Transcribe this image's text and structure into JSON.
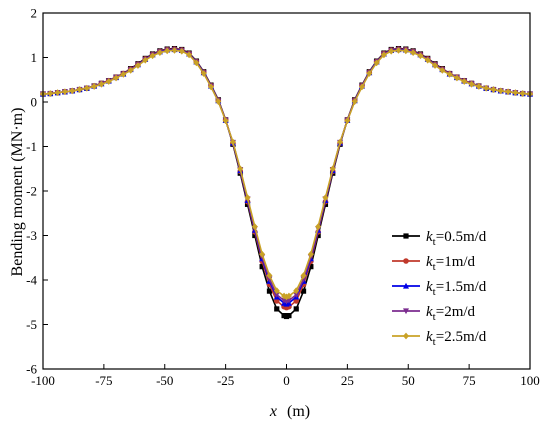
{
  "chart_data": {
    "type": "line",
    "xlabel_var": "x",
    "xlabel_unit": "(m)",
    "ylabel": "Bending moment (MN·m)",
    "xlim": [
      -100,
      100
    ],
    "ylim": [
      -6,
      2
    ],
    "x_ticks": [
      -100,
      -75,
      -50,
      -25,
      0,
      25,
      50,
      75,
      100
    ],
    "y_ticks": [
      -6,
      -5,
      -4,
      -3,
      -2,
      -1,
      0,
      1,
      2
    ],
    "grid": false,
    "legend_position": "bottom-right",
    "series": [
      {
        "name": "kt=0.5m/d",
        "label_var": "k",
        "label_sub": "t",
        "label_rest": "=0.5m/d",
        "color": "#000000",
        "marker": "square",
        "x": [
          -100,
          -97,
          -94,
          -91,
          -88,
          -85,
          -82,
          -79,
          -76,
          -73,
          -70,
          -67,
          -64,
          -61,
          -58,
          -55,
          -52,
          -49,
          -46,
          -43,
          -40,
          -37,
          -34,
          -31,
          -28,
          -25,
          -22,
          -19,
          -16,
          -13,
          -10,
          -7,
          -4,
          -1,
          0,
          1,
          4,
          7,
          10,
          13,
          16,
          19,
          22,
          25,
          28,
          31,
          34,
          37,
          40,
          43,
          46,
          49,
          52,
          55,
          58,
          61,
          64,
          67,
          70,
          73,
          76,
          79,
          82,
          85,
          88,
          91,
          94,
          97,
          100
        ],
        "y": [
          0.18,
          0.19,
          0.21,
          0.23,
          0.25,
          0.28,
          0.31,
          0.36,
          0.42,
          0.48,
          0.56,
          0.64,
          0.75,
          0.86,
          0.98,
          1.08,
          1.15,
          1.19,
          1.2,
          1.18,
          1.1,
          0.92,
          0.68,
          0.38,
          0.05,
          -0.4,
          -0.95,
          -1.6,
          -2.3,
          -3.0,
          -3.7,
          -4.25,
          -4.65,
          -4.8,
          -4.82,
          -4.8,
          -4.65,
          -4.25,
          -3.7,
          -3.0,
          -2.3,
          -1.6,
          -0.95,
          -0.4,
          0.05,
          0.38,
          0.68,
          0.92,
          1.1,
          1.18,
          1.2,
          1.19,
          1.15,
          1.08,
          0.98,
          0.86,
          0.75,
          0.64,
          0.56,
          0.48,
          0.42,
          0.36,
          0.31,
          0.28,
          0.25,
          0.23,
          0.21,
          0.19,
          0.18
        ]
      },
      {
        "name": "kt=1m/d",
        "label_var": "k",
        "label_sub": "t",
        "label_rest": "=1m/d",
        "color": "#c0392b",
        "marker": "circle",
        "x": [
          -100,
          -97,
          -94,
          -91,
          -88,
          -85,
          -82,
          -79,
          -76,
          -73,
          -70,
          -67,
          -64,
          -61,
          -58,
          -55,
          -52,
          -49,
          -46,
          -43,
          -40,
          -37,
          -34,
          -31,
          -28,
          -25,
          -22,
          -19,
          -16,
          -13,
          -10,
          -7,
          -4,
          -1,
          0,
          1,
          4,
          7,
          10,
          13,
          16,
          19,
          22,
          25,
          28,
          31,
          34,
          37,
          40,
          43,
          46,
          49,
          52,
          55,
          58,
          61,
          64,
          67,
          70,
          73,
          76,
          79,
          82,
          85,
          88,
          91,
          94,
          97,
          100
        ],
        "y": [
          0.18,
          0.19,
          0.21,
          0.23,
          0.25,
          0.28,
          0.31,
          0.36,
          0.42,
          0.48,
          0.56,
          0.64,
          0.74,
          0.85,
          0.97,
          1.07,
          1.14,
          1.18,
          1.19,
          1.17,
          1.09,
          0.91,
          0.67,
          0.37,
          0.04,
          -0.4,
          -0.93,
          -1.56,
          -2.24,
          -2.92,
          -3.58,
          -4.1,
          -4.47,
          -4.6,
          -4.62,
          -4.6,
          -4.47,
          -4.1,
          -3.58,
          -2.92,
          -2.24,
          -1.56,
          -0.93,
          -0.4,
          0.04,
          0.37,
          0.67,
          0.91,
          1.09,
          1.17,
          1.19,
          1.18,
          1.14,
          1.07,
          0.97,
          0.85,
          0.74,
          0.64,
          0.56,
          0.48,
          0.42,
          0.36,
          0.31,
          0.28,
          0.25,
          0.23,
          0.21,
          0.19,
          0.18
        ]
      },
      {
        "name": "kt=1.5m/d",
        "label_var": "k",
        "label_sub": "t",
        "label_rest": "=1.5m/d",
        "color": "#0000e6",
        "marker": "triangle-up",
        "x": [
          -100,
          -97,
          -94,
          -91,
          -88,
          -85,
          -82,
          -79,
          -76,
          -73,
          -70,
          -67,
          -64,
          -61,
          -58,
          -55,
          -52,
          -49,
          -46,
          -43,
          -40,
          -37,
          -34,
          -31,
          -28,
          -25,
          -22,
          -19,
          -16,
          -13,
          -10,
          -7,
          -4,
          -1,
          0,
          1,
          4,
          7,
          10,
          13,
          16,
          19,
          22,
          25,
          28,
          31,
          34,
          37,
          40,
          43,
          46,
          49,
          52,
          55,
          58,
          61,
          64,
          67,
          70,
          73,
          76,
          79,
          82,
          85,
          88,
          91,
          94,
          97,
          100
        ],
        "y": [
          0.18,
          0.19,
          0.21,
          0.23,
          0.25,
          0.28,
          0.31,
          0.36,
          0.41,
          0.47,
          0.55,
          0.63,
          0.73,
          0.84,
          0.96,
          1.06,
          1.13,
          1.17,
          1.18,
          1.16,
          1.08,
          0.9,
          0.66,
          0.36,
          0.03,
          -0.41,
          -0.92,
          -1.54,
          -2.21,
          -2.88,
          -3.52,
          -4.03,
          -4.38,
          -4.52,
          -4.54,
          -4.52,
          -4.38,
          -4.03,
          -3.52,
          -2.88,
          -2.21,
          -1.54,
          -0.92,
          -0.41,
          0.03,
          0.36,
          0.66,
          0.9,
          1.08,
          1.16,
          1.18,
          1.17,
          1.13,
          1.06,
          0.96,
          0.84,
          0.73,
          0.63,
          0.55,
          0.47,
          0.41,
          0.36,
          0.31,
          0.28,
          0.25,
          0.23,
          0.21,
          0.19,
          0.18
        ]
      },
      {
        "name": "kt=2m/d",
        "label_var": "k",
        "label_sub": "t",
        "label_rest": "=2m/d",
        "color": "#7b2c8f",
        "marker": "triangle-down",
        "x": [
          -100,
          -97,
          -94,
          -91,
          -88,
          -85,
          -82,
          -79,
          -76,
          -73,
          -70,
          -67,
          -64,
          -61,
          -58,
          -55,
          -52,
          -49,
          -46,
          -43,
          -40,
          -37,
          -34,
          -31,
          -28,
          -25,
          -22,
          -19,
          -16,
          -13,
          -10,
          -7,
          -4,
          -1,
          0,
          1,
          4,
          7,
          10,
          13,
          16,
          19,
          22,
          25,
          28,
          31,
          34,
          37,
          40,
          43,
          46,
          49,
          52,
          55,
          58,
          61,
          64,
          67,
          70,
          73,
          76,
          79,
          82,
          85,
          88,
          91,
          94,
          97,
          100
        ],
        "y": [
          0.18,
          0.19,
          0.21,
          0.23,
          0.25,
          0.28,
          0.31,
          0.35,
          0.41,
          0.47,
          0.55,
          0.63,
          0.72,
          0.83,
          0.95,
          1.05,
          1.12,
          1.16,
          1.17,
          1.15,
          1.07,
          0.89,
          0.65,
          0.35,
          0.02,
          -0.41,
          -0.91,
          -1.52,
          -2.18,
          -2.85,
          -3.48,
          -3.98,
          -4.33,
          -4.46,
          -4.48,
          -4.46,
          -4.33,
          -3.98,
          -3.48,
          -2.85,
          -2.18,
          -1.52,
          -0.91,
          -0.41,
          0.02,
          0.35,
          0.65,
          0.89,
          1.07,
          1.15,
          1.17,
          1.16,
          1.12,
          1.05,
          0.95,
          0.83,
          0.72,
          0.63,
          0.55,
          0.47,
          0.41,
          0.35,
          0.31,
          0.28,
          0.25,
          0.23,
          0.21,
          0.19,
          0.18
        ]
      },
      {
        "name": "kt=2.5m/d",
        "label_var": "k",
        "label_sub": "t",
        "label_rest": "=2.5m/d",
        "color": "#c9a227",
        "marker": "diamond",
        "x": [
          -100,
          -97,
          -94,
          -91,
          -88,
          -85,
          -82,
          -79,
          -76,
          -73,
          -70,
          -67,
          -64,
          -61,
          -58,
          -55,
          -52,
          -49,
          -46,
          -43,
          -40,
          -37,
          -34,
          -31,
          -28,
          -25,
          -22,
          -19,
          -16,
          -13,
          -10,
          -7,
          -4,
          -1,
          0,
          1,
          4,
          7,
          10,
          13,
          16,
          19,
          22,
          25,
          28,
          31,
          34,
          37,
          40,
          43,
          46,
          49,
          52,
          55,
          58,
          61,
          64,
          67,
          70,
          73,
          76,
          79,
          82,
          85,
          88,
          91,
          94,
          97,
          100
        ],
        "y": [
          0.18,
          0.19,
          0.21,
          0.23,
          0.25,
          0.28,
          0.31,
          0.35,
          0.4,
          0.46,
          0.54,
          0.62,
          0.71,
          0.82,
          0.94,
          1.04,
          1.11,
          1.15,
          1.16,
          1.14,
          1.06,
          0.88,
          0.64,
          0.34,
          0.01,
          -0.42,
          -0.9,
          -1.5,
          -2.15,
          -2.8,
          -3.42,
          -3.9,
          -4.24,
          -4.36,
          -4.38,
          -4.36,
          -4.24,
          -3.9,
          -3.42,
          -2.8,
          -2.15,
          -1.5,
          -0.9,
          -0.42,
          0.01,
          0.34,
          0.64,
          0.88,
          1.06,
          1.14,
          1.16,
          1.15,
          1.11,
          1.04,
          0.94,
          0.82,
          0.71,
          0.62,
          0.54,
          0.46,
          0.4,
          0.35,
          0.31,
          0.28,
          0.25,
          0.23,
          0.21,
          0.19,
          0.18
        ]
      }
    ]
  }
}
